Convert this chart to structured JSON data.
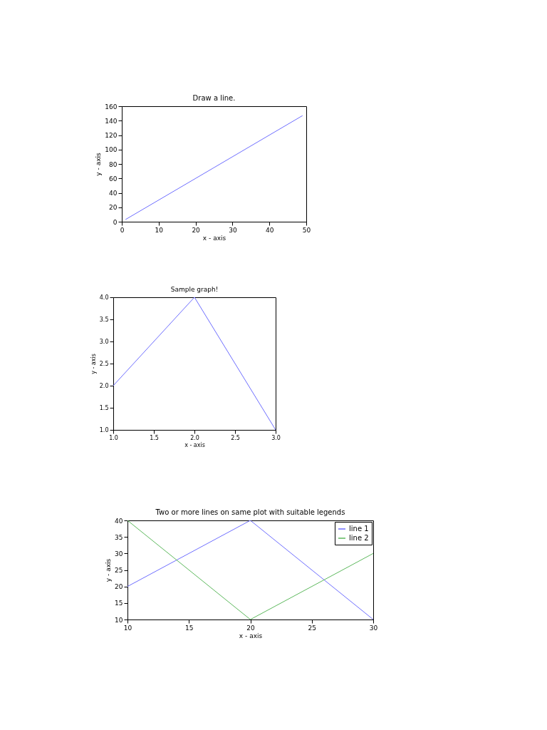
{
  "chart_data": [
    {
      "type": "line",
      "title": "Draw a line.",
      "xlabel": "x - axis",
      "ylabel": "y - axis",
      "x": [
        1,
        25,
        49
      ],
      "series": [
        {
          "color": "#6e6eff",
          "values": [
            3,
            75,
            147
          ]
        }
      ],
      "xlim": [
        0,
        50
      ],
      "xticks": [
        0,
        10,
        20,
        30,
        40,
        50
      ],
      "ylim": [
        0,
        160
      ],
      "yticks": [
        0,
        20,
        40,
        60,
        80,
        100,
        120,
        140,
        160
      ],
      "grid": false,
      "legend": false
    },
    {
      "type": "line",
      "title": "Sample graph!",
      "xlabel": "x - axis",
      "ylabel": "y - axis",
      "x": [
        1,
        2,
        3
      ],
      "series": [
        {
          "color": "#6e6eff",
          "values": [
            2,
            4,
            1
          ]
        }
      ],
      "xlim": [
        1,
        3
      ],
      "xticks": [
        {
          "value": 1,
          "label": "1.0"
        },
        {
          "value": 1.5,
          "label": "1.5"
        },
        {
          "value": 2,
          "label": "2.0"
        },
        {
          "value": 2.5,
          "label": "2.5"
        },
        {
          "value": 3,
          "label": "3.0"
        }
      ],
      "ylim": [
        1,
        4
      ],
      "yticks": [
        {
          "value": 1,
          "label": "1.0"
        },
        {
          "value": 1.5,
          "label": "1.5"
        },
        {
          "value": 2,
          "label": "2.0"
        },
        {
          "value": 2.5,
          "label": "2.5"
        },
        {
          "value": 3,
          "label": "3.0"
        },
        {
          "value": 3.5,
          "label": "3.5"
        },
        {
          "value": 4,
          "label": "4.0"
        }
      ],
      "grid": false,
      "legend": false
    },
    {
      "type": "line",
      "title": "Two or more lines on same plot with suitable legends",
      "xlabel": "x - axis",
      "ylabel": "y - axis",
      "x": [
        10,
        20,
        30
      ],
      "series": [
        {
          "name": "line 1",
          "color": "#6e6eff",
          "values": [
            20,
            40,
            10
          ]
        },
        {
          "name": "line 2",
          "color": "#5cb85c",
          "values": [
            40,
            10,
            30
          ]
        }
      ],
      "xlim": [
        10,
        30
      ],
      "xticks": [
        10,
        15,
        20,
        25,
        30
      ],
      "ylim": [
        10,
        40
      ],
      "yticks": [
        10,
        15,
        20,
        25,
        30,
        35,
        40
      ],
      "grid": false,
      "legend": "top right"
    }
  ]
}
